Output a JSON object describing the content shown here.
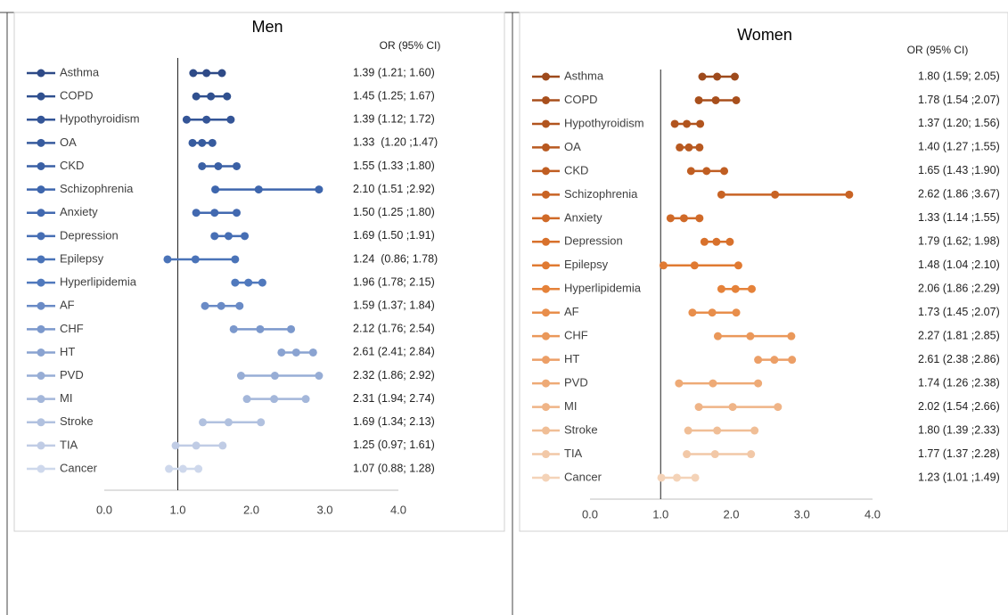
{
  "chart_data": [
    {
      "type": "forest",
      "title": "Men",
      "column_header": "OR (95% CI)",
      "categories": [
        "Asthma",
        "COPD",
        "Hypothyroidism",
        "OA",
        "CKD",
        "Schizophrenia",
        "Anxiety",
        "Depression",
        "Epilepsy",
        "Hyperlipidemia",
        "AF",
        "CHF",
        "HT",
        "PVD",
        "MI",
        "Stroke",
        "TIA",
        "Cancer"
      ],
      "values": [
        1.39,
        1.45,
        1.39,
        1.33,
        1.55,
        2.1,
        1.5,
        1.69,
        1.24,
        1.96,
        1.59,
        2.12,
        2.61,
        2.32,
        2.31,
        1.69,
        1.25,
        1.07
      ],
      "lower": [
        1.21,
        1.25,
        1.12,
        1.2,
        1.33,
        1.51,
        1.25,
        1.5,
        0.86,
        1.78,
        1.37,
        1.76,
        2.41,
        1.86,
        1.94,
        1.34,
        0.97,
        0.88
      ],
      "upper": [
        1.6,
        1.67,
        1.72,
        1.47,
        1.8,
        2.92,
        1.8,
        1.91,
        1.78,
        2.15,
        1.84,
        2.54,
        2.84,
        2.92,
        2.74,
        2.13,
        1.61,
        1.28
      ],
      "value_labels": [
        "1.39 (1.21; 1.60)",
        "1.45 (1.25; 1.67)",
        "1.39 (1.12; 1.72)",
        "1.33  (1.20 ;1.47)",
        "1.55 (1.33 ;1.80)",
        "2.10 (1.51 ;2.92)",
        "1.50 (1.25 ;1.80)",
        "1.69 (1.50 ;1.91)",
        "1.24  (0.86; 1.78)",
        "1.96 (1.78; 2.15)",
        "1.59 (1.37; 1.84)",
        "2.12 (1.76; 2.54)",
        "2.61 (2.41; 2.84)",
        "2.32 (1.86; 2.92)",
        "2.31 (1.94; 2.74)",
        "1.69 (1.34; 2.13)",
        "1.25 (0.97; 1.61)",
        "1.07 (0.88; 1.28)"
      ],
      "colors": [
        "#2e4a87",
        "#30508f",
        "#345597",
        "#375b9e",
        "#3a60a5",
        "#3e66ad",
        "#4269b0",
        "#466eb4",
        "#4a73b8",
        "#5079bd",
        "#6a8bc6",
        "#7b98cc",
        "#8aa3d1",
        "#97add5",
        "#a4b7da",
        "#b1c1df",
        "#c0cce5",
        "#ced8ec"
      ],
      "xlim": [
        0,
        4
      ],
      "xticks": [
        {
          "value": 0,
          "label": "0.0"
        },
        {
          "value": 1,
          "label": "1.0"
        },
        {
          "value": 2,
          "label": "2.0"
        },
        {
          "value": 3,
          "label": "3.0"
        },
        {
          "value": 4,
          "label": "4.0"
        }
      ],
      "reference_line": 1
    },
    {
      "type": "forest",
      "title": "Women",
      "column_header": "OR (95% CI)",
      "categories": [
        "Asthma",
        "COPD",
        "Hypothyroidism",
        "OA",
        "CKD",
        "Schizophrenia",
        "Anxiety",
        "Depression",
        "Epilepsy",
        "Hyperlipidemia",
        "AF",
        "CHF",
        "HT",
        "PVD",
        "MI",
        "Stroke",
        "TIA",
        "Cancer"
      ],
      "values": [
        1.8,
        1.78,
        1.37,
        1.4,
        1.65,
        2.62,
        1.33,
        1.79,
        1.48,
        2.06,
        1.73,
        2.27,
        2.61,
        1.74,
        2.02,
        1.8,
        1.77,
        1.23
      ],
      "lower": [
        1.59,
        1.54,
        1.2,
        1.27,
        1.43,
        1.86,
        1.14,
        1.62,
        1.04,
        1.86,
        1.45,
        1.81,
        2.38,
        1.26,
        1.54,
        1.39,
        1.37,
        1.01
      ],
      "upper": [
        2.05,
        2.07,
        1.56,
        1.55,
        1.9,
        3.67,
        1.55,
        1.98,
        2.1,
        2.29,
        2.07,
        2.85,
        2.86,
        2.38,
        2.66,
        2.33,
        2.28,
        1.49
      ],
      "value_labels": [
        "1.80 (1.59; 2.05)",
        "1.78 (1.54 ;2.07)",
        "1.37 (1.20; 1.56)",
        "1.40 (1.27 ;1.55)",
        "1.65 (1.43 ;1.90)",
        "2.62 (1.86 ;3.67)",
        "1.33 (1.14 ;1.55)",
        "1.79 (1.62; 1.98)",
        "1.48 (1.04 ;2.10)",
        "2.06 (1.86 ;2.29)",
        "1.73 (1.45 ;2.07)",
        "2.27 (1.81 ;2.85)",
        "2.61 (2.38 ;2.86)",
        "1.74 (1.26 ;2.38)",
        "2.02 (1.54 ;2.66)",
        "1.80 (1.39 ;2.33)",
        "1.77 (1.37 ;2.28)",
        "1.23 (1.01 ;1.49)"
      ],
      "colors": [
        "#9e4a1c",
        "#a84f1c",
        "#b1541e",
        "#b85920",
        "#c05e22",
        "#c86324",
        "#d06a28",
        "#d8712c",
        "#e07a32",
        "#e5823a",
        "#e88e4b",
        "#ea985a",
        "#ec9f67",
        "#eeaa76",
        "#efb487",
        "#f0be96",
        "#f2c8a7",
        "#f4d3b8"
      ],
      "xlim": [
        0,
        4
      ],
      "xticks": [
        {
          "value": 0,
          "label": "0.0"
        },
        {
          "value": 1,
          "label": "1.0"
        },
        {
          "value": 2,
          "label": "2.0"
        },
        {
          "value": 3,
          "label": "3.0"
        },
        {
          "value": 4,
          "label": "4.0"
        }
      ],
      "reference_line": 1
    }
  ]
}
